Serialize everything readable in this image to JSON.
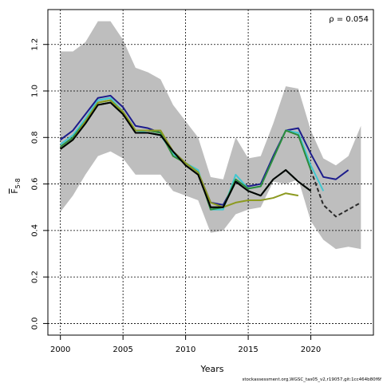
{
  "chart_data": {
    "type": "line",
    "title": "",
    "xlabel": "Years",
    "ylabel_main": "F",
    "ylabel_sub": "5-8",
    "annotation": "ρ = 0.054",
    "footer": "stockassessment.org,WGSC_tas05_v2,r19057,git:1cc464b80f6f",
    "xlim": [
      1999,
      2025
    ],
    "ylim": [
      -0.05,
      1.35
    ],
    "x_ticks": [
      2000,
      2005,
      2010,
      2015,
      2020
    ],
    "y_ticks": [
      0.0,
      0.2,
      0.4,
      0.6,
      0.8,
      1.0,
      1.2
    ],
    "grid": true,
    "band": {
      "x": [
        2000,
        2001,
        2002,
        2003,
        2004,
        2005,
        2006,
        2007,
        2008,
        2009,
        2010,
        2011,
        2012,
        2013,
        2014,
        2015,
        2016,
        2017,
        2018,
        2019,
        2020,
        2021,
        2022,
        2023,
        2024
      ],
      "upper": [
        1.17,
        1.17,
        1.21,
        1.3,
        1.3,
        1.22,
        1.1,
        1.08,
        1.05,
        0.94,
        0.87,
        0.8,
        0.63,
        0.62,
        0.8,
        0.71,
        0.72,
        0.86,
        1.02,
        1.01,
        0.83,
        0.71,
        0.68,
        0.72,
        0.85
      ],
      "lower": [
        0.48,
        0.55,
        0.64,
        0.72,
        0.74,
        0.71,
        0.64,
        0.64,
        0.64,
        0.57,
        0.55,
        0.53,
        0.39,
        0.4,
        0.47,
        0.49,
        0.5,
        0.61,
        0.6,
        0.62,
        0.44,
        0.36,
        0.32,
        0.33,
        0.32
      ]
    },
    "series": [
      {
        "color": "#1c1c8c",
        "x": [
          2000,
          2001,
          2002,
          2003,
          2004,
          2005,
          2006,
          2007,
          2008,
          2009,
          2010,
          2011,
          2012,
          2013,
          2014,
          2015,
          2016,
          2017,
          2018,
          2019,
          2020,
          2021,
          2022,
          2023
        ],
        "values": [
          0.79,
          0.83,
          0.9,
          0.97,
          0.98,
          0.93,
          0.85,
          0.84,
          0.82,
          0.74,
          0.69,
          0.65,
          0.52,
          0.51,
          0.61,
          0.59,
          0.6,
          0.72,
          0.83,
          0.84,
          0.73,
          0.63,
          0.62,
          0.66
        ]
      },
      {
        "color": "#40c8d0",
        "x": [
          2000,
          2001,
          2002,
          2003,
          2004,
          2005,
          2006,
          2007,
          2008,
          2009,
          2010,
          2011,
          2012,
          2013,
          2014,
          2015,
          2016,
          2017,
          2018,
          2019,
          2020,
          2021
        ],
        "values": [
          0.77,
          0.81,
          0.88,
          0.96,
          0.97,
          0.91,
          0.83,
          0.82,
          0.81,
          0.73,
          0.69,
          0.66,
          0.49,
          0.49,
          0.64,
          0.58,
          0.59,
          0.71,
          0.83,
          0.82,
          0.68,
          0.57
        ]
      },
      {
        "color": "#2e8b3a",
        "x": [
          2000,
          2001,
          2002,
          2003,
          2004,
          2005,
          2006,
          2007,
          2008,
          2009,
          2010,
          2011,
          2012,
          2013,
          2014,
          2015,
          2016,
          2017,
          2018,
          2019,
          2020
        ],
        "values": [
          0.76,
          0.8,
          0.87,
          0.95,
          0.96,
          0.91,
          0.83,
          0.83,
          0.82,
          0.72,
          0.69,
          0.65,
          0.49,
          0.5,
          0.62,
          0.58,
          0.59,
          0.71,
          0.83,
          0.81,
          0.66
        ]
      },
      {
        "color": "#0b6b2e",
        "x": [
          2000,
          2001,
          2002,
          2003,
          2004,
          2005,
          2006,
          2007,
          2008,
          2009,
          2010,
          2011,
          2012,
          2013,
          2014,
          2015,
          2016,
          2017,
          2018,
          2019,
          2020
        ],
        "values": [
          0.75,
          0.79,
          0.86,
          0.94,
          0.95,
          0.9,
          0.82,
          0.82,
          0.81,
          0.74,
          0.68,
          0.64,
          0.5,
          0.5,
          0.61,
          0.57,
          0.55,
          0.62,
          0.66,
          0.61,
          0.57
        ]
      },
      {
        "color": "#8c9a20",
        "x": [
          2000,
          2001,
          2002,
          2003,
          2004,
          2005,
          2006,
          2007,
          2008,
          2009,
          2010,
          2011,
          2012,
          2013,
          2014,
          2015,
          2016,
          2017,
          2018,
          2019
        ],
        "values": [
          0.75,
          0.79,
          0.87,
          0.95,
          0.96,
          0.91,
          0.83,
          0.83,
          0.83,
          0.74,
          0.69,
          0.65,
          0.52,
          0.5,
          0.52,
          0.53,
          0.53,
          0.54,
          0.56,
          0.55
        ]
      },
      {
        "color": "#000000",
        "x": [
          2000,
          2001,
          2002,
          2003,
          2004,
          2005,
          2006,
          2007,
          2008,
          2009,
          2010,
          2011,
          2012,
          2013,
          2014,
          2015,
          2016,
          2017,
          2018,
          2019,
          2020
        ],
        "values": [
          0.75,
          0.79,
          0.86,
          0.94,
          0.95,
          0.9,
          0.82,
          0.82,
          0.81,
          0.74,
          0.68,
          0.64,
          0.5,
          0.5,
          0.61,
          0.57,
          0.55,
          0.62,
          0.66,
          0.61,
          0.57
        ]
      },
      {
        "color": "#2a2a2a",
        "dashed": true,
        "x": [
          2020,
          2021,
          2022,
          2023,
          2024
        ],
        "values": [
          0.66,
          0.51,
          0.46,
          0.49,
          0.52
        ]
      }
    ]
  }
}
